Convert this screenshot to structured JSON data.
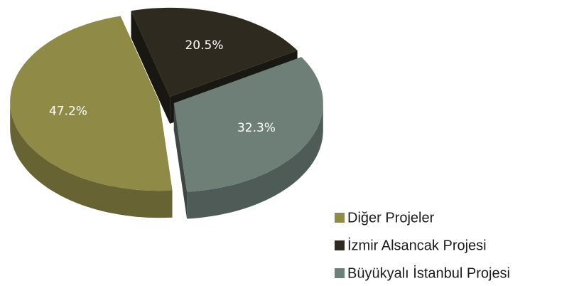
{
  "chart_data": {
    "type": "pie",
    "categories": [
      "Diğer Projeler",
      "İzmir Alsancak Projesi",
      "Büyükyalı İstanbul Projesi"
    ],
    "values": [
      47.2,
      20.5,
      32.3
    ],
    "value_labels": [
      "47.2%",
      "20.5%",
      "32.3%"
    ],
    "colors": [
      "#8f8a45",
      "#2e2a1f",
      "#6e7f78"
    ],
    "legend": "bottom-right"
  }
}
